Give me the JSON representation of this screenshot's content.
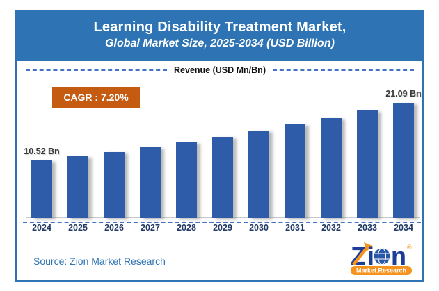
{
  "header": {
    "title": "Learning Disability Treatment Market,",
    "subtitle": "Global Market Size, 2025-2034 (USD Billion)"
  },
  "chart": {
    "axis_title": "Revenue (USD Mn/Bn)",
    "cagr_label": "CAGR : 7.20%"
  },
  "chart_data": {
    "type": "bar",
    "title": "Learning Disability Treatment Market, Global Market Size, 2025-2034 (USD Billion)",
    "ylabel": "Revenue (USD Mn/Bn)",
    "unit": "USD Billion",
    "cagr": "7.20%",
    "categories": [
      "2024",
      "2025",
      "2026",
      "2027",
      "2028",
      "2029",
      "2030",
      "2031",
      "2032",
      "2033",
      "2034"
    ],
    "values": [
      10.52,
      11.28,
      12.09,
      12.96,
      13.89,
      14.89,
      15.96,
      17.11,
      18.34,
      19.66,
      21.09
    ],
    "labeled_points": {
      "2024": "10.52 Bn",
      "2034": "21.09 Bn"
    },
    "ylim": [
      0,
      21.09
    ],
    "grid": false,
    "legend": false,
    "bar_color": "#2F5CA8"
  },
  "footer": {
    "source": "Source: Zion Market Research"
  },
  "logo": {
    "brand": "Zion",
    "brand_z": "Z",
    "brand_i": "i",
    "brand_n": "n",
    "registered": "®",
    "tagline": "Market.Research"
  },
  "colors": {
    "banner_blue": "#2E74B5",
    "bar_blue": "#2F5CA8",
    "cagr_orange": "#C55A11",
    "axis_label_navy": "#1F3864",
    "dash_blue": "#4472C4",
    "logo_blue": "#1D3E97",
    "logo_orange": "#F6921E"
  }
}
